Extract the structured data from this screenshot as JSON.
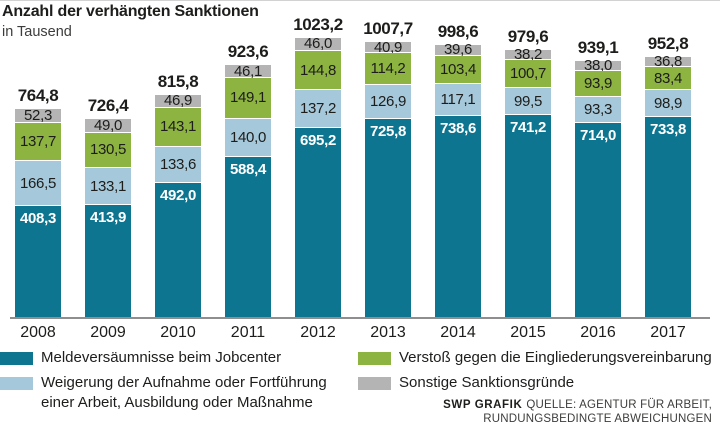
{
  "header": {
    "title": "Anzahl der verhängten Sanktionen",
    "subtitle": "in Tausend"
  },
  "chart_data": {
    "type": "bar",
    "stacked": true,
    "unit": "Tausend",
    "number_format": "decimal-comma",
    "legend_position": "bottom",
    "categories": [
      "2008",
      "2009",
      "2010",
      "2011",
      "2012",
      "2013",
      "2014",
      "2015",
      "2016",
      "2017"
    ],
    "series": [
      {
        "name": "Meldeversäumnisse beim Jobcenter",
        "color": "#0e7590",
        "label_color": "#ffffff",
        "values": [
          408.3,
          413.9,
          492.0,
          588.4,
          695.2,
          725.8,
          738.6,
          741.2,
          714.0,
          733.8
        ]
      },
      {
        "name": "Weigerung der Aufnahme oder Fortführung einer Arbeit, Ausbildung oder Maßnahme",
        "color": "#a5c8da",
        "label_color": "#1d1d1b",
        "values": [
          166.5,
          133.1,
          133.6,
          140.0,
          137.2,
          126.9,
          117.1,
          99.5,
          93.3,
          98.9
        ]
      },
      {
        "name": "Verstoß gegen die Eingliederungsvereinbarung",
        "color": "#8db341",
        "label_color": "#1d1d1b",
        "values": [
          137.7,
          130.5,
          143.1,
          149.1,
          144.8,
          114.2,
          103.4,
          100.7,
          93.9,
          83.4
        ]
      },
      {
        "name": "Sonstige Sanktionsgründe",
        "color": "#b4b4b4",
        "label_color": "#1d1d1b",
        "values": [
          52.3,
          49.0,
          46.9,
          46.1,
          46.0,
          40.9,
          39.6,
          38.2,
          38.0,
          36.8
        ]
      }
    ],
    "totals": [
      764.8,
      726.4,
      815.8,
      923.6,
      1023.2,
      1007.7,
      998.6,
      979.6,
      939.1,
      952.8
    ]
  },
  "legend": {
    "items": [
      {
        "label": "Meldeversäumnisse beim Jobcenter",
        "color": "#0e7590"
      },
      {
        "label": "Weigerung der Aufnahme oder Fortführung einer Arbeit, Ausbildung oder Maßnahme",
        "color": "#a5c8da"
      },
      {
        "label": "Verstoß gegen die Eingliederungsvereinbarung",
        "color": "#8db341"
      },
      {
        "label": "Sonstige Sanktionsgründe",
        "color": "#b4b4b4"
      }
    ]
  },
  "source": {
    "brand": "SWP GRAFIK",
    "line1": "QUELLE: AGENTUR FÜR ARBEIT,",
    "line2": "RUNDUNGSBEDINGTE ABWEICHUNGEN"
  }
}
